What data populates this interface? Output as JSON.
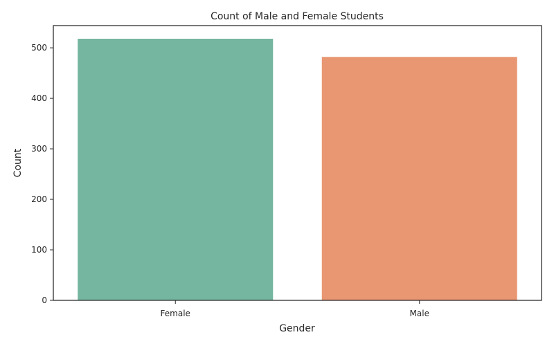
{
  "chart_data": {
    "type": "bar",
    "title": "Count of Male and Female Students",
    "xlabel": "Gender",
    "ylabel": "Count",
    "categories": [
      "Female",
      "Male"
    ],
    "values": [
      518,
      482
    ],
    "colors": [
      "#75b6a0",
      "#e99773"
    ],
    "ylim": [
      0,
      544
    ],
    "yticks": [
      0,
      100,
      200,
      300,
      400,
      500
    ],
    "grid": false
  }
}
